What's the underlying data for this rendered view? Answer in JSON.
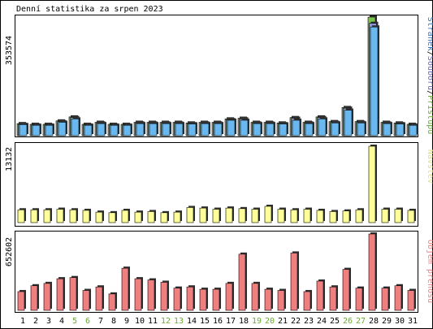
{
  "chart_data": [
    {
      "type": "bar",
      "title": "Denní statistika za srpen 2023",
      "panel": "top",
      "categories": [
        "1",
        "2",
        "3",
        "4",
        "5",
        "6",
        "7",
        "8",
        "9",
        "10",
        "11",
        "12",
        "13",
        "14",
        "15",
        "16",
        "17",
        "18",
        "19",
        "20",
        "21",
        "22",
        "23",
        "24",
        "25",
        "26",
        "27",
        "28",
        "29",
        "30",
        "31"
      ],
      "ymax_label": "353574",
      "ylim": [
        0,
        353574
      ],
      "legend": [
        "Stránek",
        "Souborů",
        "Přístupů"
      ],
      "legend_colors": {
        "pages": "#2f74c0",
        "files": "#6b6bbd",
        "hits": "#6aac2f"
      },
      "series": [
        {
          "name": "Přístupů",
          "color": "#7bc34a",
          "values": [
            36000,
            34000,
            34000,
            44000,
            56000,
            34000,
            40000,
            34000,
            34000,
            40000,
            40000,
            40000,
            40000,
            38000,
            40000,
            40000,
            50000,
            52000,
            40000,
            40000,
            38000,
            54000,
            40000,
            56000,
            42000,
            84000,
            42000,
            353574,
            40000,
            38000,
            34000
          ]
        },
        {
          "name": "Souborů",
          "color": "#8d93d8",
          "values": [
            34000,
            32000,
            32000,
            42000,
            54000,
            32000,
            38000,
            32000,
            32000,
            38000,
            38000,
            38000,
            38000,
            36000,
            38000,
            38000,
            48000,
            50000,
            38000,
            38000,
            36000,
            52000,
            38000,
            54000,
            40000,
            82000,
            40000,
            335000,
            38000,
            36000,
            32000
          ]
        },
        {
          "name": "Stránek",
          "color": "#6ab8f0",
          "values": [
            33000,
            31000,
            31000,
            40000,
            50000,
            31000,
            36000,
            31000,
            31000,
            36000,
            36000,
            36000,
            36000,
            35000,
            36000,
            36000,
            46000,
            46000,
            36000,
            36000,
            35000,
            46000,
            36000,
            50000,
            38000,
            76000,
            38000,
            324000,
            36000,
            35000,
            31000
          ]
        }
      ]
    },
    {
      "type": "bar",
      "panel": "middle",
      "categories": [
        "1",
        "2",
        "3",
        "4",
        "5",
        "6",
        "7",
        "8",
        "9",
        "10",
        "11",
        "12",
        "13",
        "14",
        "15",
        "16",
        "17",
        "18",
        "19",
        "20",
        "21",
        "22",
        "23",
        "24",
        "25",
        "26",
        "27",
        "28",
        "29",
        "30",
        "31"
      ],
      "ymax_label": "13132",
      "ylim": [
        0,
        13132
      ],
      "legend": [
        "Návštěv"
      ],
      "series": [
        {
          "name": "Návštěv",
          "color": "#ffff99",
          "values": [
            2200,
            2200,
            2200,
            2300,
            2200,
            2100,
            1800,
            1700,
            2100,
            1800,
            1900,
            1700,
            1800,
            2600,
            2500,
            2300,
            2500,
            2400,
            2300,
            2800,
            2300,
            2200,
            2300,
            2100,
            1900,
            2000,
            2200,
            13132,
            2300,
            2300,
            2100
          ]
        }
      ]
    },
    {
      "type": "bar",
      "panel": "bottom",
      "categories": [
        "1",
        "2",
        "3",
        "4",
        "5",
        "6",
        "7",
        "8",
        "9",
        "10",
        "11",
        "12",
        "13",
        "14",
        "15",
        "16",
        "17",
        "18",
        "19",
        "20",
        "21",
        "22",
        "23",
        "24",
        "25",
        "26",
        "27",
        "28",
        "29",
        "30",
        "31"
      ],
      "weekend_days": [
        "5",
        "6",
        "12",
        "13",
        "19",
        "20",
        "26",
        "27"
      ],
      "ymax_label": "652602",
      "ylim": [
        0,
        652602
      ],
      "legend": [
        "Objem přenosu"
      ],
      "series": [
        {
          "name": "Objem přenosu",
          "color": "#f08080",
          "values": [
            160000,
            210000,
            230000,
            270000,
            280000,
            170000,
            200000,
            140000,
            360000,
            270000,
            260000,
            240000,
            190000,
            200000,
            180000,
            180000,
            230000,
            480000,
            230000,
            180000,
            170000,
            490000,
            160000,
            250000,
            200000,
            350000,
            190000,
            652602,
            190000,
            210000,
            170000
          ]
        }
      ]
    }
  ],
  "colors": {
    "frame": "#000000",
    "weekday_label": "#000000",
    "weekend_label": "#6aac2f",
    "visits_legend": "#e0e08a",
    "volume_legend": "#f08080"
  }
}
